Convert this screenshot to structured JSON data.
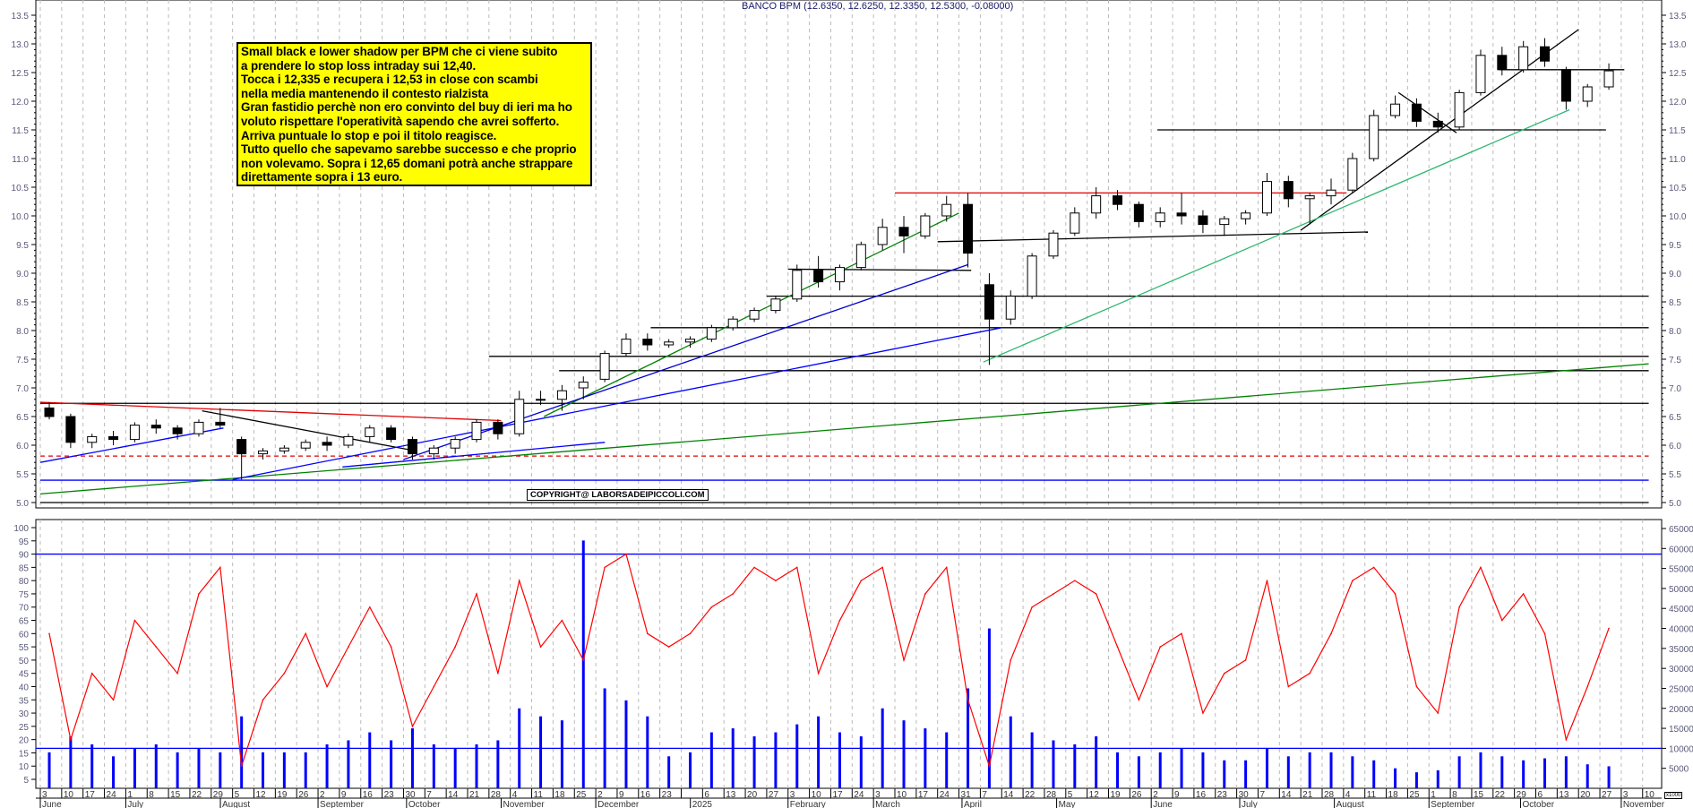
{
  "title": "BANCO BPM (12.6350, 12.6250, 12.3350, 12.5300, -0.08000)",
  "note": {
    "lines": [
      "Small black e lower shadow per BPM che ci viene subito",
      "a prendere lo stop loss  intraday sui 12,40.",
      "Tocca i 12,335 e recupera i 12,53 in close con scambi",
      "nella media mantenendo il contesto rialzista",
      "Gran fastidio perchè non ero convinto del buy di ieri ma ho",
      "voluto rispettare l'operatività sapendo che avrei sofferto.",
      "Arriva puntuale lo stop e poi il titolo reagisce.",
      "Tutto quello che sapevamo sarebbe successo e che proprio",
      "non volevamo. Sopra i 12,65 domani potrà anche strappare",
      "direttamente sopra i 13 euro."
    ],
    "background": "#ffff00"
  },
  "copyright": "COPYRIGHT@ LABORSADEIPICCOLI.COM",
  "volume_unit": "x1000",
  "chart_data": [
    {
      "type": "candlestick",
      "resolution": "weekly (approximated from daily candles)",
      "ylim": [
        5.0,
        13.5
      ],
      "y_ticks": [
        "5.0",
        "5.5",
        "6.0",
        "6.5",
        "7.0",
        "7.5",
        "8.0",
        "8.5",
        "9.0",
        "9.5",
        "10.0",
        "10.5",
        "11.0",
        "11.5",
        "12.0",
        "12.5",
        "13.0",
        "13.5"
      ],
      "grid": "vertical dashed weekly",
      "colors": {
        "up": "#ffffff",
        "down": "#000000"
      },
      "weeks_start": "2024-06-03",
      "ohlc": [
        [
          6.65,
          6.75,
          6.45,
          6.5
        ],
        [
          6.5,
          6.55,
          5.95,
          6.05
        ],
        [
          6.05,
          6.2,
          5.95,
          6.15
        ],
        [
          6.15,
          6.25,
          6.0,
          6.1
        ],
        [
          6.1,
          6.4,
          6.05,
          6.35
        ],
        [
          6.35,
          6.45,
          6.2,
          6.3
        ],
        [
          6.3,
          6.35,
          6.1,
          6.2
        ],
        [
          6.2,
          6.45,
          6.15,
          6.4
        ],
        [
          6.4,
          6.65,
          6.3,
          6.35
        ],
        [
          6.1,
          6.15,
          5.4,
          5.85
        ],
        [
          5.85,
          5.95,
          5.75,
          5.9
        ],
        [
          5.9,
          6.0,
          5.85,
          5.95
        ],
        [
          5.95,
          6.1,
          5.9,
          6.05
        ],
        [
          6.05,
          6.15,
          5.9,
          6.0
        ],
        [
          6.0,
          6.2,
          5.95,
          6.15
        ],
        [
          6.15,
          6.35,
          6.05,
          6.3
        ],
        [
          6.3,
          6.35,
          6.05,
          6.1
        ],
        [
          6.1,
          6.15,
          5.75,
          5.85
        ],
        [
          5.85,
          6.0,
          5.75,
          5.95
        ],
        [
          5.95,
          6.15,
          5.85,
          6.1
        ],
        [
          6.1,
          6.45,
          6.05,
          6.4
        ],
        [
          6.4,
          6.45,
          6.1,
          6.2
        ],
        [
          6.2,
          6.95,
          6.15,
          6.8
        ],
        [
          6.8,
          6.95,
          6.7,
          6.8
        ],
        [
          6.8,
          7.05,
          6.6,
          6.95
        ],
        [
          7.0,
          7.2,
          6.8,
          7.1
        ],
        [
          7.15,
          7.65,
          7.1,
          7.6
        ],
        [
          7.6,
          7.95,
          7.55,
          7.85
        ],
        [
          7.85,
          7.95,
          7.65,
          7.75
        ],
        [
          7.75,
          7.85,
          7.7,
          7.8
        ],
        [
          7.8,
          7.9,
          7.7,
          7.85
        ],
        [
          7.85,
          8.1,
          7.8,
          8.05
        ],
        [
          8.05,
          8.25,
          8.0,
          8.2
        ],
        [
          8.2,
          8.4,
          8.15,
          8.35
        ],
        [
          8.35,
          8.6,
          8.3,
          8.55
        ],
        [
          8.55,
          9.15,
          8.5,
          9.05
        ],
        [
          9.05,
          9.3,
          8.75,
          8.85
        ],
        [
          8.85,
          9.15,
          8.7,
          9.1
        ],
        [
          9.1,
          9.55,
          9.05,
          9.5
        ],
        [
          9.5,
          9.95,
          9.4,
          9.8
        ],
        [
          9.8,
          10.0,
          9.35,
          9.65
        ],
        [
          9.65,
          10.05,
          9.6,
          10.0
        ],
        [
          10.0,
          10.35,
          9.9,
          10.2
        ],
        [
          10.2,
          10.4,
          9.1,
          9.35
        ],
        [
          8.8,
          9.0,
          7.4,
          8.2
        ],
        [
          8.2,
          8.7,
          8.1,
          8.6
        ],
        [
          8.6,
          9.35,
          8.55,
          9.3
        ],
        [
          9.3,
          9.75,
          9.25,
          9.7
        ],
        [
          9.7,
          10.15,
          9.65,
          10.05
        ],
        [
          10.05,
          10.5,
          9.95,
          10.35
        ],
        [
          10.35,
          10.45,
          10.1,
          10.2
        ],
        [
          10.2,
          10.25,
          9.8,
          9.9
        ],
        [
          9.9,
          10.15,
          9.8,
          10.05
        ],
        [
          10.05,
          10.4,
          9.85,
          10.0
        ],
        [
          10.0,
          10.1,
          9.7,
          9.85
        ],
        [
          9.85,
          10.0,
          9.65,
          9.95
        ],
        [
          9.95,
          10.1,
          9.85,
          10.05
        ],
        [
          10.05,
          10.75,
          10.0,
          10.6
        ],
        [
          10.6,
          10.7,
          10.15,
          10.3
        ],
        [
          10.3,
          10.4,
          9.85,
          10.35
        ],
        [
          10.35,
          10.65,
          10.2,
          10.45
        ],
        [
          10.45,
          11.1,
          10.4,
          11.0
        ],
        [
          11.0,
          11.85,
          10.95,
          11.75
        ],
        [
          11.75,
          12.1,
          11.7,
          11.95
        ],
        [
          11.95,
          12.05,
          11.55,
          11.65
        ],
        [
          11.65,
          11.8,
          11.45,
          11.55
        ],
        [
          11.55,
          12.2,
          11.5,
          12.15
        ],
        [
          12.15,
          12.9,
          12.1,
          12.8
        ],
        [
          12.8,
          12.95,
          12.45,
          12.55
        ],
        [
          12.55,
          13.05,
          12.5,
          12.95
        ],
        [
          12.95,
          13.1,
          12.6,
          12.7
        ],
        [
          12.55,
          12.6,
          11.85,
          12.0
        ],
        [
          12.0,
          12.3,
          11.9,
          12.25
        ],
        [
          12.25,
          12.66,
          12.2,
          12.53
        ]
      ],
      "lines": [
        {
          "from": [
            "2024-06-03",
            6.73
          ],
          "to": [
            "2025-11-12",
            6.73
          ],
          "color": "#000000"
        },
        {
          "from": [
            "2024-06-03",
            5.0
          ],
          "to": [
            "2025-11-12",
            5.0
          ],
          "color": "#000000"
        },
        {
          "from": [
            "2024-06-03",
            5.39
          ],
          "to": [
            "2025-11-12",
            5.39
          ],
          "color": "#0000ff"
        },
        {
          "from": [
            "2024-06-03",
            5.81
          ],
          "to": [
            "2025-11-12",
            5.81
          ],
          "color": "#e00000",
          "dashed": true
        },
        {
          "from": [
            "2024-11-20",
            7.3
          ],
          "to": [
            "2025-11-12",
            7.3
          ],
          "color": "#000000"
        },
        {
          "from": [
            "2024-10-28",
            7.55
          ],
          "to": [
            "2025-11-12",
            7.55
          ],
          "color": "#000000"
        },
        {
          "from": [
            "2024-12-20",
            8.05
          ],
          "to": [
            "2025-11-12",
            8.05
          ],
          "color": "#000000"
        },
        {
          "from": [
            "2025-01-27",
            8.6
          ],
          "to": [
            "2025-11-12",
            8.6
          ],
          "color": "#000000"
        },
        {
          "from": [
            "2025-02-03",
            9.07
          ],
          "to": [
            "2025-04-04",
            9.05
          ],
          "color": "#000000"
        },
        {
          "from": [
            "2025-03-10",
            10.4
          ],
          "to": [
            "2025-08-05",
            10.4
          ],
          "color": "#e00000"
        },
        {
          "from": [
            "2025-03-24",
            9.55
          ],
          "to": [
            "2025-08-12",
            9.72
          ],
          "color": "#000000"
        },
        {
          "from": [
            "2025-06-04",
            11.5
          ],
          "to": [
            "2025-10-29",
            11.5
          ],
          "color": "#000000"
        },
        {
          "from": [
            "2025-09-24",
            12.55
          ],
          "to": [
            "2025-11-04",
            12.55
          ],
          "color": "#000000"
        },
        {
          "from": [
            "2025-07-21",
            9.75
          ],
          "to": [
            "2025-10-20",
            13.25
          ],
          "color": "#000000"
        },
        {
          "from": [
            "2025-08-22",
            12.15
          ],
          "to": [
            "2025-09-10",
            11.45
          ],
          "color": "#000000"
        },
        {
          "from": [
            "2025-04-08",
            7.45
          ],
          "to": [
            "2025-10-17",
            11.85
          ],
          "color": "#2eb872"
        },
        {
          "from": [
            "2024-06-03",
            6.75
          ],
          "to": [
            "2024-11-01",
            6.43
          ],
          "color": "#e00000"
        },
        {
          "from": [
            "2024-07-26",
            6.6
          ],
          "to": [
            "2024-10-04",
            5.9
          ],
          "color": "#000000"
        },
        {
          "from": [
            "2024-06-03",
            5.7
          ],
          "to": [
            "2024-08-02",
            6.3
          ],
          "color": "#0000ff"
        },
        {
          "from": [
            "2024-06-03",
            5.15
          ],
          "to": [
            "2025-11-12",
            7.42
          ],
          "color": "#008000"
        },
        {
          "from": [
            "2024-11-15",
            6.5
          ],
          "to": [
            "2025-03-31",
            10.05
          ],
          "color": "#008000"
        },
        {
          "from": [
            "2024-09-30",
            5.75
          ],
          "to": [
            "2025-04-03",
            9.15
          ],
          "color": "#0000cc"
        },
        {
          "from": [
            "2024-08-05",
            5.4
          ],
          "to": [
            "2025-04-14",
            8.05
          ],
          "color": "#0000ff"
        },
        {
          "from": [
            "2024-09-10",
            5.62
          ],
          "to": [
            "2024-12-05",
            6.05
          ],
          "color": "#0000ff"
        }
      ]
    },
    {
      "type": "line",
      "name": "RSI",
      "ylim": [
        0,
        100
      ],
      "y_ticks": [
        "5",
        "10",
        "15",
        "20",
        "25",
        "30",
        "35",
        "40",
        "45",
        "50",
        "55",
        "60",
        "65",
        "70",
        "75",
        "80",
        "85",
        "90",
        "95",
        "100"
      ],
      "levels": [
        90
      ],
      "color": "#ff0000",
      "values": [
        60,
        20,
        45,
        35,
        65,
        55,
        45,
        75,
        85,
        10,
        35,
        45,
        60,
        40,
        55,
        70,
        55,
        25,
        40,
        55,
        75,
        45,
        80,
        55,
        65,
        50,
        85,
        90,
        60,
        55,
        60,
        70,
        75,
        85,
        80,
        85,
        45,
        65,
        80,
        85,
        50,
        75,
        85,
        35,
        10,
        50,
        70,
        75,
        80,
        75,
        55,
        35,
        55,
        60,
        30,
        45,
        50,
        80,
        40,
        45,
        60,
        80,
        85,
        75,
        40,
        30,
        70,
        85,
        65,
        75,
        60,
        20,
        40,
        62
      ]
    },
    {
      "type": "bar",
      "name": "Volume",
      "y_ticks": [
        "5000",
        "10000",
        "15000",
        "20000",
        "25000",
        "30000",
        "35000",
        "40000",
        "45000",
        "50000",
        "55000",
        "60000",
        "65000"
      ],
      "levels": [
        10000
      ],
      "color": "#0000ff",
      "values": [
        9000,
        13000,
        11000,
        8000,
        10000,
        11000,
        9000,
        10000,
        9000,
        18000,
        9000,
        9000,
        9000,
        11000,
        12000,
        14000,
        12000,
        15000,
        11000,
        10000,
        11000,
        12000,
        20000,
        18000,
        17000,
        62000,
        25000,
        22000,
        18000,
        8000,
        9000,
        14000,
        15000,
        13000,
        14000,
        16000,
        18000,
        14000,
        13000,
        20000,
        17000,
        15000,
        14000,
        25000,
        40000,
        18000,
        14000,
        12000,
        11000,
        13000,
        9000,
        8000,
        9000,
        10000,
        9000,
        7000,
        7000,
        10000,
        8000,
        9000,
        9000,
        8000,
        7000,
        5000,
        4000,
        4500,
        8000,
        9000,
        8000,
        7000,
        7500,
        8000,
        6000,
        5500
      ]
    }
  ],
  "x_axis": {
    "week_ticks": [
      "3",
      "10",
      "17",
      "24",
      "1",
      "8",
      "15",
      "22",
      "29",
      "5",
      "12",
      "19",
      "26",
      "2",
      "9",
      "16",
      "23",
      "30",
      "7",
      "14",
      "21",
      "28",
      "4",
      "11",
      "18",
      "25",
      "2",
      "9",
      "16",
      "23",
      "",
      "6",
      "13",
      "20",
      "27",
      "3",
      "10",
      "17",
      "24",
      "3",
      "10",
      "17",
      "24",
      "31",
      "7",
      "14",
      "22",
      "28",
      "5",
      "12",
      "19",
      "26",
      "2",
      "9",
      "16",
      "23",
      "30",
      "7",
      "14",
      "21",
      "28",
      "4",
      "11",
      "18",
      "25",
      "1",
      "8",
      "15",
      "22",
      "29",
      "6",
      "13",
      "20",
      "27",
      "3",
      "10"
    ],
    "months": [
      {
        "label": "June",
        "date": "2024-06-03"
      },
      {
        "label": "July",
        "date": "2024-07-01"
      },
      {
        "label": "August",
        "date": "2024-08-01"
      },
      {
        "label": "September",
        "date": "2024-09-02"
      },
      {
        "label": "October",
        "date": "2024-10-01"
      },
      {
        "label": "November",
        "date": "2024-11-01"
      },
      {
        "label": "December",
        "date": "2024-12-02"
      },
      {
        "label": "2025",
        "date": "2025-01-02"
      },
      {
        "label": "February",
        "date": "2025-02-03"
      },
      {
        "label": "March",
        "date": "2025-03-03"
      },
      {
        "label": "April",
        "date": "2025-04-01"
      },
      {
        "label": "May",
        "date": "2025-05-02"
      },
      {
        "label": "June",
        "date": "2025-06-02"
      },
      {
        "label": "July",
        "date": "2025-07-01"
      },
      {
        "label": "August",
        "date": "2025-08-01"
      },
      {
        "label": "September",
        "date": "2025-09-01"
      },
      {
        "label": "October",
        "date": "2025-10-01"
      },
      {
        "label": "November",
        "date": "2025-11-03"
      }
    ]
  }
}
